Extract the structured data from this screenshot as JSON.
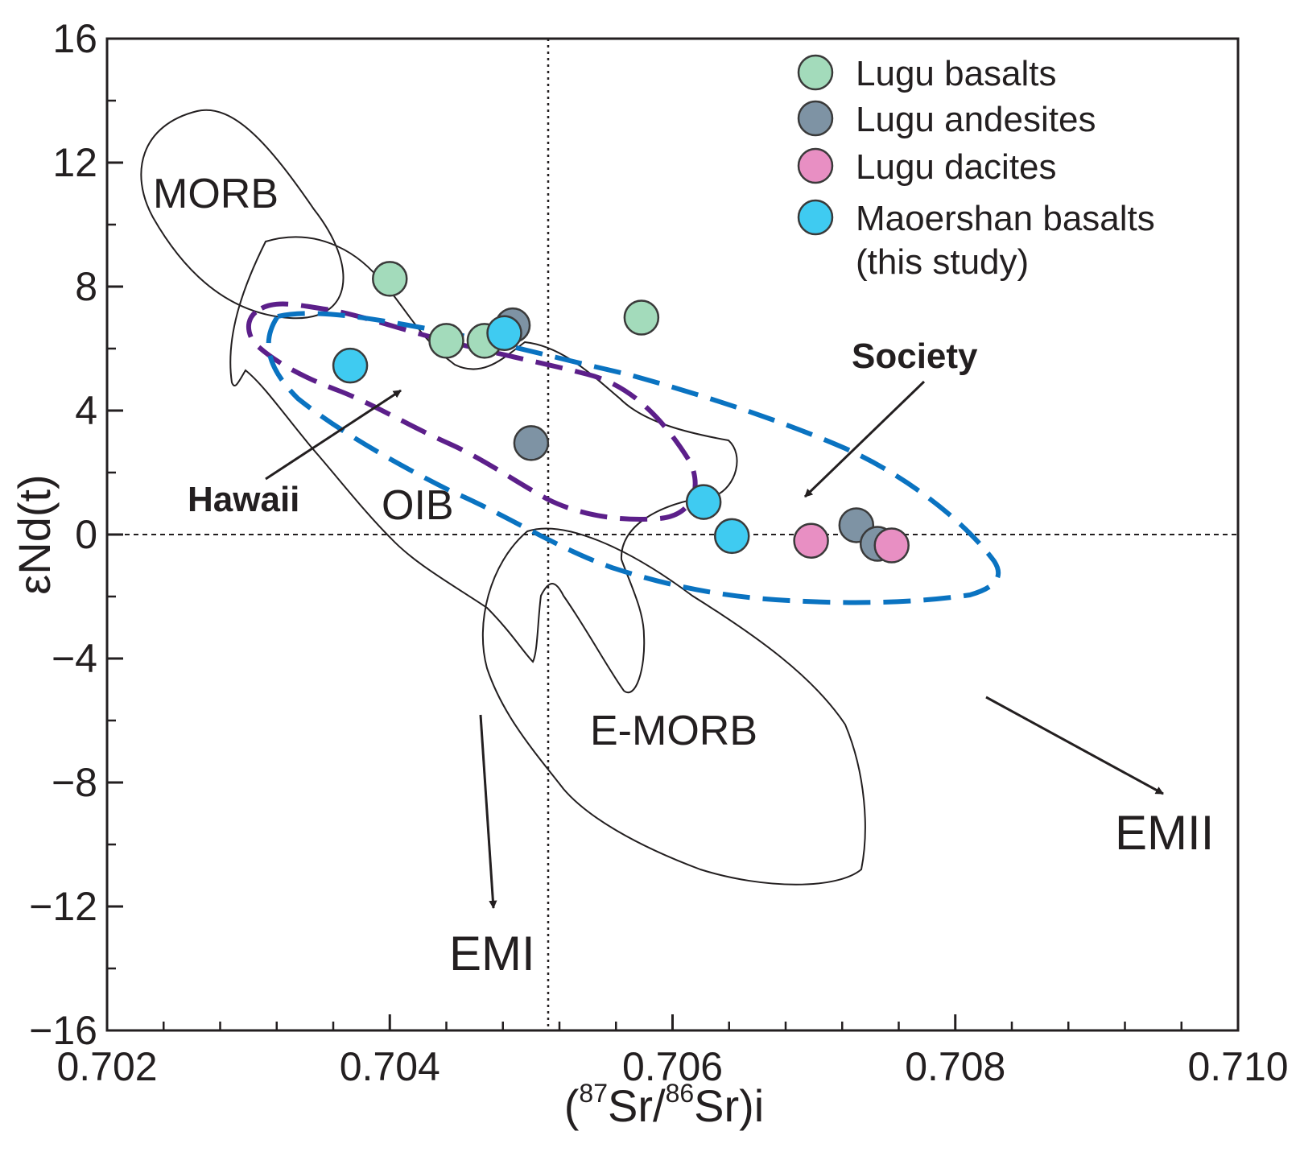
{
  "chart_data": {
    "type": "scatter",
    "xlabel": "(87Sr/86Sr)i",
    "xlabel_parts": {
      "open": "(",
      "sup1": "87",
      "mid": "Sr/",
      "sup2": "86",
      "close": "Sr)i"
    },
    "ylabel": "εNd(t)",
    "xlim": [
      0.702,
      0.71
    ],
    "ylim": [
      -16,
      16
    ],
    "x_ticks": [
      "0.702",
      "0.704",
      "0.706",
      "0.708",
      "0.710"
    ],
    "y_ticks": [
      "16",
      "12",
      "8",
      "4",
      "0",
      "−4",
      "−8",
      "−12",
      "−16"
    ],
    "reference_lines": {
      "horizontal_y": 0,
      "vertical_x": 0.70512
    },
    "legend_position": "top-right",
    "series": [
      {
        "name": "Lugu basalts",
        "color": "#a3dbbb",
        "points": [
          [
            0.704,
            8.25
          ],
          [
            0.7044,
            6.25
          ],
          [
            0.70467,
            6.25
          ],
          [
            0.70578,
            7.0
          ]
        ]
      },
      {
        "name": "Lugu andesites",
        "color": "#7e93a4",
        "points": [
          [
            0.70487,
            6.75
          ],
          [
            0.705,
            2.95
          ],
          [
            0.7073,
            0.3
          ],
          [
            0.70745,
            -0.3
          ]
        ]
      },
      {
        "name": "Lugu dacites",
        "color": "#e88fc3",
        "points": [
          [
            0.70698,
            -0.2
          ],
          [
            0.70755,
            -0.35
          ]
        ]
      },
      {
        "name": "Maoershan basalts",
        "name_line2": "(this study)",
        "color": "#3fcbf1",
        "points": [
          [
            0.70372,
            5.45
          ],
          [
            0.70481,
            6.5
          ],
          [
            0.70622,
            1.05
          ],
          [
            0.70642,
            -0.05
          ]
        ]
      }
    ],
    "fields": [
      {
        "label": "MORB",
        "style": "solid"
      },
      {
        "label": "OIB",
        "style": "solid"
      },
      {
        "label": "E-MORB",
        "style": "solid"
      },
      {
        "label": "Hawaii",
        "style": "dashed",
        "color": "#5c1f8a"
      },
      {
        "label": "Society",
        "style": "dashed",
        "color": "#0a73c1"
      }
    ],
    "trend_labels": [
      "EMI",
      "EMII"
    ]
  }
}
